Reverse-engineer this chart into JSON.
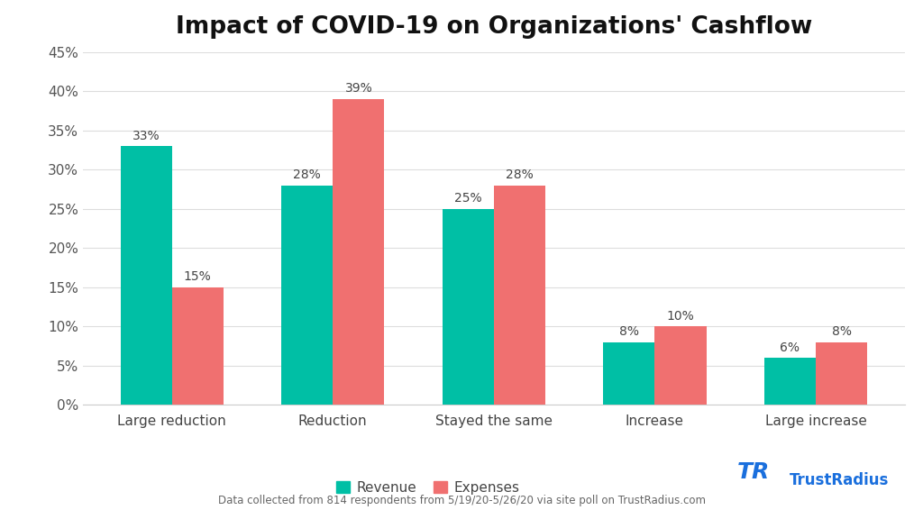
{
  "title": "Impact of COVID-19 on Organizations' Cashflow",
  "categories": [
    "Large reduction",
    "Reduction",
    "Stayed the same",
    "Increase",
    "Large increase"
  ],
  "revenue": [
    33,
    28,
    25,
    8,
    6
  ],
  "expenses": [
    15,
    39,
    28,
    10,
    8
  ],
  "revenue_color": "#00BFA5",
  "expenses_color": "#F07070",
  "ylim": [
    0,
    45
  ],
  "yticks": [
    0,
    5,
    10,
    15,
    20,
    25,
    30,
    35,
    40,
    45
  ],
  "ytick_labels": [
    "0%",
    "5%",
    "10%",
    "15%",
    "20%",
    "25%",
    "30%",
    "35%",
    "40%",
    "45%"
  ],
  "legend_revenue": "Revenue",
  "legend_expenses": "Expenses",
  "footnote": "Data collected from 814 respondents from 5/19/20-5/26/20 via site poll on TrustRadius.com",
  "background_color": "#ffffff",
  "bar_width": 0.32,
  "title_fontsize": 19,
  "label_fontsize": 11,
  "tick_fontsize": 11,
  "annotation_fontsize": 10,
  "footnote_fontsize": 8.5,
  "trustradius_color": "#1a6fdd"
}
